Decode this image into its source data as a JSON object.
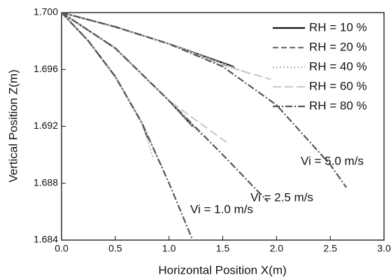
{
  "chart_data": {
    "type": "line",
    "xlabel": "Horizontal Position X(m)",
    "ylabel": "Vertical Position Z(m)",
    "xlim": [
      0,
      3
    ],
    "ylim": [
      1.684,
      1.7
    ],
    "xticks": [
      {
        "value": 0,
        "label": "0.0"
      },
      0.5,
      {
        "value": 1,
        "label": "1.0"
      },
      1.5,
      {
        "value": 2,
        "label": "2.0"
      },
      2.5,
      {
        "value": 3,
        "label": "3.0"
      }
    ],
    "yticks": [
      1.684,
      1.688,
      1.692,
      1.696,
      {
        "value": 1.7,
        "label": "1.700"
      }
    ],
    "legend": "upper right",
    "annotations": [
      "Vi = 5.0 m/s",
      "Vi = 2.5 m/s",
      "Vi = 1.0 m/s"
    ],
    "series": [
      {
        "name": "RH = 10 %",
        "color": "#111111",
        "dash": "solid",
        "x": [
          0,
          0.5,
          1.0,
          1.6,
          null,
          0,
          0.5,
          1.0,
          1.22,
          null,
          0,
          0.25,
          0.5,
          0.75,
          0.8
        ],
        "values": [
          1.7,
          1.699,
          1.6978,
          1.6962,
          null,
          1.7,
          1.6975,
          1.6938,
          1.692,
          null,
          1.7,
          1.698,
          1.6955,
          1.6922,
          1.6912
        ]
      },
      {
        "name": "RH = 20 %",
        "color": "#707070",
        "dash": "dashed",
        "x": [
          0,
          0.5,
          1.0,
          1.62,
          null,
          0,
          0.5,
          1.0,
          1.24,
          null,
          0,
          0.25,
          0.5,
          0.75,
          0.82
        ],
        "values": [
          1.7,
          1.699,
          1.6978,
          1.6961,
          null,
          1.7,
          1.6975,
          1.6938,
          1.6919,
          null,
          1.7,
          1.698,
          1.6955,
          1.6922,
          1.691
        ]
      },
      {
        "name": "RH = 40 %",
        "color": "#bbbbbb",
        "dash": "dotted",
        "x": [
          0,
          0.5,
          1.0,
          1.5,
          1.75,
          null,
          0,
          0.5,
          1.0,
          1.3,
          null,
          0,
          0.25,
          0.5,
          0.75,
          0.85
        ],
        "values": [
          1.7,
          1.699,
          1.6978,
          1.6964,
          1.6957,
          null,
          1.7,
          1.6975,
          1.6938,
          1.6914,
          null,
          1.7,
          1.698,
          1.6955,
          1.6922,
          1.6898
        ]
      },
      {
        "name": "RH = 60 %",
        "color": "#cccccc",
        "dash": "long-dash",
        "x": [
          0,
          0.5,
          1.0,
          1.5,
          1.95,
          null,
          0,
          0.5,
          1.0,
          1.55,
          null,
          0,
          0.25,
          0.5,
          0.75,
          0.95
        ],
        "values": [
          1.7,
          1.699,
          1.6978,
          1.6963,
          1.6953,
          null,
          1.7,
          1.6975,
          1.6938,
          1.6908,
          null,
          1.7,
          1.698,
          1.6955,
          1.6922,
          1.6889
        ]
      },
      {
        "name": "RH = 80 %",
        "color": "#555555",
        "dash": "dash-dot",
        "x": [
          0,
          0.5,
          1.0,
          1.5,
          2.0,
          2.5,
          2.65,
          null,
          0,
          0.5,
          1.0,
          1.5,
          1.92,
          null,
          0,
          0.25,
          0.5,
          0.75,
          1.0,
          1.22
        ],
        "values": [
          1.7,
          1.699,
          1.6978,
          1.6962,
          1.6935,
          1.6893,
          1.6877,
          null,
          1.7,
          1.6975,
          1.6938,
          1.69,
          1.6867,
          null,
          1.7,
          1.698,
          1.6955,
          1.6922,
          1.688,
          1.684
        ]
      }
    ]
  }
}
